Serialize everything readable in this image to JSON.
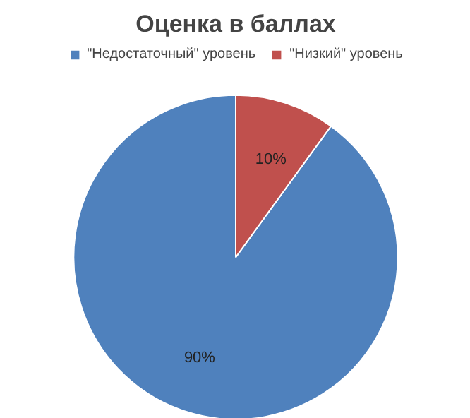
{
  "chart_data": {
    "type": "pie",
    "title": "Оценка в баллах",
    "categories": [
      "\"Недостаточный\" уровень",
      "\"Низкий\" уровень"
    ],
    "values": [
      90,
      10
    ],
    "colors": [
      "#4f81bd",
      "#c0504d"
    ],
    "value_labels": [
      "90%",
      "10%"
    ],
    "legend": "top"
  }
}
